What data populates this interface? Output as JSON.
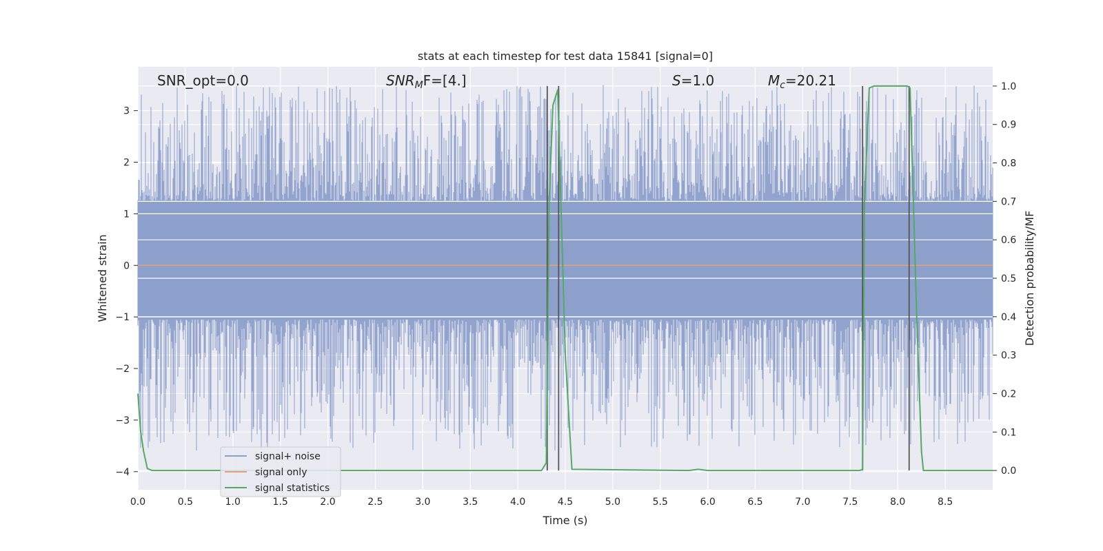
{
  "chart_data": {
    "type": "line",
    "title": "stats at each timestep for test data 15841 [signal=0]",
    "xlabel": "Time (s)",
    "ylabel": "Whitened strain",
    "y2label": "Detection probability/MF",
    "xlim": [
      0.0,
      9.0
    ],
    "ylim": [
      -4.35,
      3.85
    ],
    "y2lim": [
      -0.05,
      1.05
    ],
    "xticks": [
      0.0,
      0.5,
      1.0,
      1.5,
      2.0,
      2.5,
      3.0,
      3.5,
      4.0,
      4.5,
      5.0,
      5.5,
      6.0,
      6.5,
      7.0,
      7.5,
      8.0,
      8.5
    ],
    "yticks": [
      -4,
      -3,
      -2,
      -1,
      0,
      1,
      2,
      3
    ],
    "y2ticks": [
      0.0,
      0.1,
      0.2,
      0.3,
      0.4,
      0.5,
      0.6,
      0.7,
      0.8,
      0.9,
      1.0
    ],
    "xtick_labels": [
      "0.0",
      "0.5",
      "1.0",
      "1.5",
      "2.0",
      "2.5",
      "3.0",
      "3.5",
      "4.0",
      "4.5",
      "5.0",
      "5.5",
      "6.0",
      "6.5",
      "7.0",
      "7.5",
      "8.0",
      "8.5"
    ],
    "ytick_labels": [
      "−4",
      "−3",
      "−2",
      "−1",
      "0",
      "1",
      "2",
      "3"
    ],
    "y2tick_labels": [
      "0.0",
      "0.1",
      "0.2",
      "0.3",
      "0.4",
      "0.5",
      "0.6",
      "0.7",
      "0.8",
      "0.9",
      "1.0"
    ],
    "grid": true,
    "legend_placement": "lower-left",
    "series": [
      {
        "name": "signal+ noise",
        "axis": "left",
        "color": "#8da0cb",
        "description_kind": "noise",
        "amplitude_range": [
          -3.6,
          3.5
        ]
      },
      {
        "name": "signal only",
        "axis": "left",
        "color": "#e5a07b",
        "x": [
          0.0,
          9.0
        ],
        "y": [
          0.0,
          0.0
        ]
      },
      {
        "name": "signal statistics",
        "axis": "right",
        "color": "#55a868",
        "x": [
          0.0,
          0.03,
          0.06,
          0.1,
          0.15,
          4.25,
          4.3,
          4.33,
          4.37,
          4.42,
          4.5,
          4.57,
          5.8,
          5.9,
          6.0,
          7.6,
          7.63,
          7.65,
          7.7,
          7.75,
          8.1,
          8.13,
          8.2,
          8.25,
          8.27,
          9.0
        ],
        "y": [
          0.2,
          0.1,
          0.05,
          0.005,
          0.0,
          0.0,
          0.02,
          0.7,
          0.95,
          0.99,
          0.3,
          0.003,
          0.0,
          0.003,
          0.0,
          0.0,
          0.003,
          0.7,
          0.995,
          1.0,
          1.0,
          0.995,
          0.4,
          0.05,
          0.0,
          0.0
        ]
      }
    ],
    "vlines": [
      4.31,
      4.43,
      7.63,
      8.12
    ],
    "annotations": [
      {
        "text": "SNR_opt=0.0"
      },
      {
        "text": "SNR",
        "sub": "M",
        "rest": "F=[4.]"
      },
      {
        "text": "S",
        "rest": "=1.0"
      },
      {
        "text": "M",
        "sub": "c",
        "rest": "=20.21"
      }
    ],
    "colors": {
      "plot_bg": "#eaeaf2",
      "grid": "#ffffff",
      "vline": "#555555",
      "legend_bg": "#eaeaf2",
      "legend_border": "#cccccc"
    }
  }
}
